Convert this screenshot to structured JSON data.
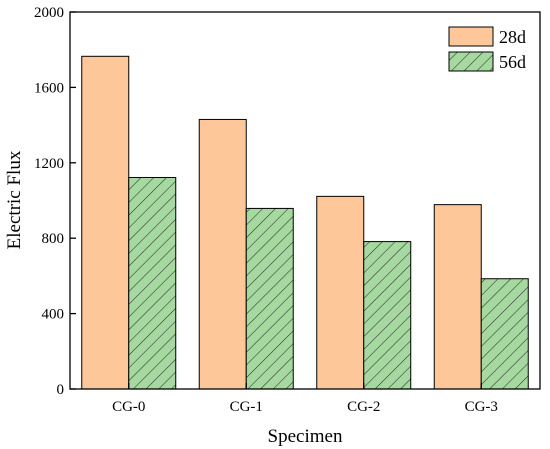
{
  "chart_data": {
    "type": "bar",
    "xlabel": "Specimen",
    "ylabel": "Electric Flux",
    "ylim": [
      0,
      2000
    ],
    "yticks": [
      0,
      400,
      800,
      1200,
      1600,
      2000
    ],
    "grid": false,
    "legend_position": "top-right",
    "categories": [
      "CG-0",
      "CG-1",
      "CG-2",
      "CG-3"
    ],
    "series": [
      {
        "name": "28d",
        "values": [
          1765,
          1430,
          1022,
          978
        ],
        "color": "#FDC79A",
        "pattern": "solid"
      },
      {
        "name": "56d",
        "values": [
          1122,
          958,
          782,
          585
        ],
        "color": "#A6D9A0",
        "pattern": "diagonal-hatch"
      }
    ]
  }
}
